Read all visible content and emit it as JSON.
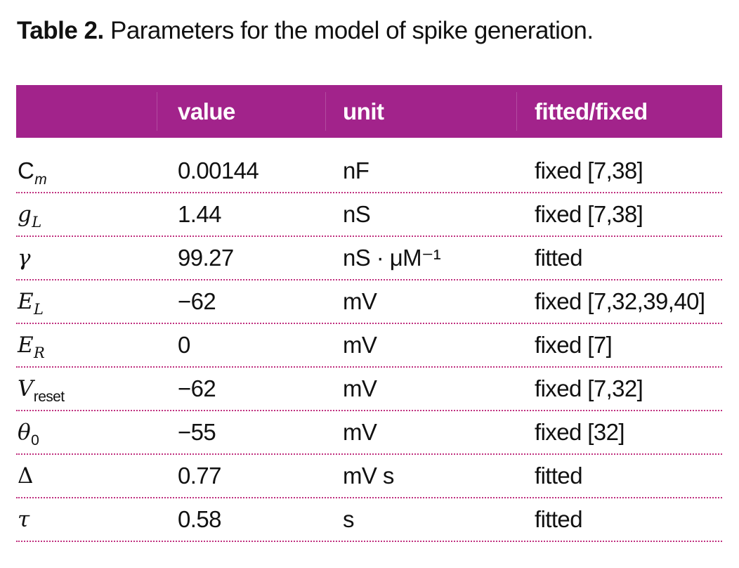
{
  "caption": {
    "label": "Table 2.",
    "text": "Parameters for the model of spike generation."
  },
  "table": {
    "headers": [
      "",
      "value",
      "unit",
      "fitted/fixed"
    ],
    "rows": [
      {
        "symbol": "C",
        "sub": "m",
        "value": "0.00144",
        "unit": "nF",
        "status": "fixed [7,38]"
      },
      {
        "symbol": "g",
        "sub": "L",
        "value": "1.44",
        "unit": "nS",
        "status": "fixed [7,38]"
      },
      {
        "symbol": "γ",
        "sub": "",
        "value": "99.27",
        "unit": "nS · μM⁻¹",
        "status": "fitted"
      },
      {
        "symbol": "E",
        "sub": "L",
        "value": "−62",
        "unit": "mV",
        "status": "fixed [7,32,39,40]"
      },
      {
        "symbol": "E",
        "sub": "R",
        "value": "0",
        "unit": "mV",
        "status": "fixed [7]"
      },
      {
        "symbol": "V",
        "sub": "reset",
        "value": "−62",
        "unit": "mV",
        "status": "fixed [7,32]"
      },
      {
        "symbol": "θ",
        "sub": "0",
        "value": "−55",
        "unit": "mV",
        "status": "fixed [32]"
      },
      {
        "symbol": "Δ",
        "sub": "",
        "value": "0.77",
        "unit": "mV s",
        "status": "fitted"
      },
      {
        "symbol": "τ",
        "sub": "",
        "value": "0.58",
        "unit": "s",
        "status": "fitted"
      }
    ]
  },
  "colors": {
    "header_background": "#a2238b",
    "row_separator": "#c0307f"
  }
}
